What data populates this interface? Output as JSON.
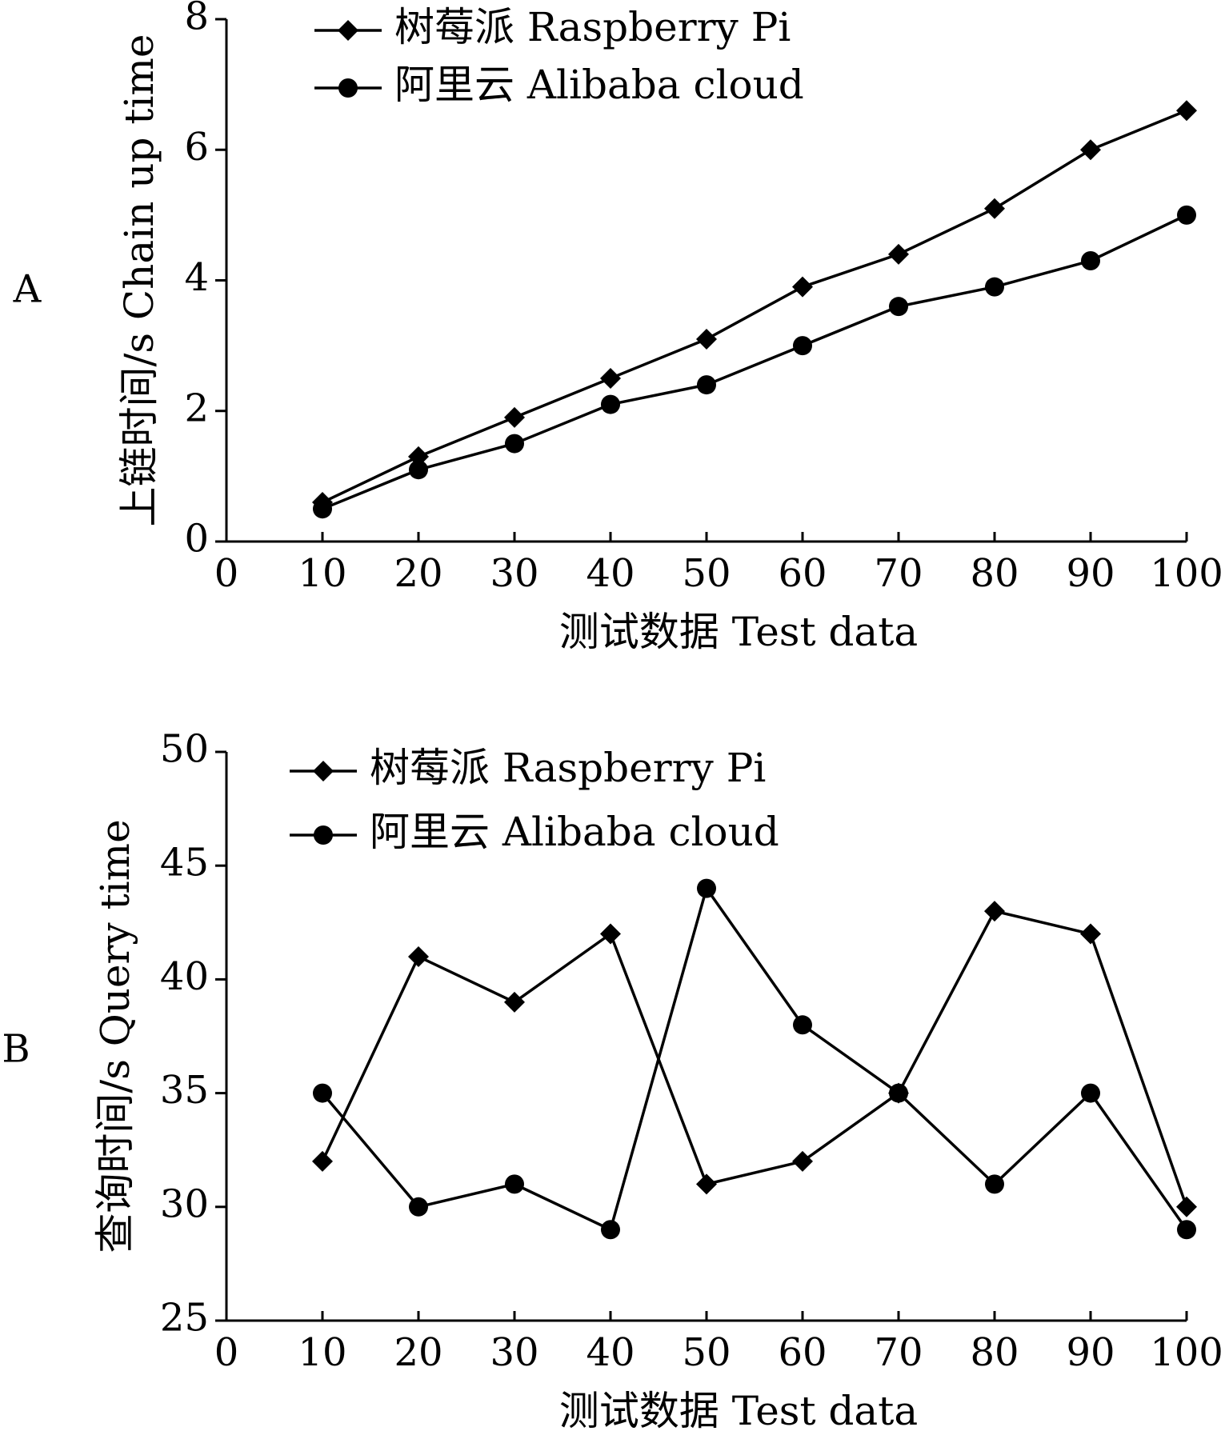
{
  "chart_data": [
    {
      "panel": "A",
      "type": "line",
      "xlabel": "测试数据 Test data",
      "ylabel": "上链时间/s  Chain up time",
      "xlim": [
        0,
        100
      ],
      "ylim": [
        0,
        8
      ],
      "xticks": [
        0,
        10,
        20,
        30,
        40,
        50,
        60,
        70,
        80,
        90,
        100
      ],
      "yticks": [
        0,
        2,
        4,
        6,
        8
      ],
      "grid": false,
      "legend_position": "top-left",
      "x": [
        10,
        20,
        30,
        40,
        50,
        60,
        70,
        80,
        90,
        100
      ],
      "series": [
        {
          "name": "树莓派  Raspberry Pi",
          "marker": "diamond",
          "values": [
            0.6,
            1.3,
            1.9,
            2.5,
            3.1,
            3.9,
            4.4,
            5.1,
            6.0,
            6.6
          ]
        },
        {
          "name": "阿里云  Alibaba cloud",
          "marker": "circle",
          "values": [
            0.5,
            1.1,
            1.5,
            2.1,
            2.4,
            3.0,
            3.6,
            3.9,
            4.3,
            5.0
          ]
        }
      ]
    },
    {
      "panel": "B",
      "type": "line",
      "xlabel": "测试数据 Test data",
      "ylabel": "查询时间/s  Query time",
      "xlim": [
        0,
        100
      ],
      "ylim": [
        25,
        50
      ],
      "xticks": [
        0,
        10,
        20,
        30,
        40,
        50,
        60,
        70,
        80,
        90,
        100
      ],
      "yticks": [
        25,
        30,
        35,
        40,
        45,
        50
      ],
      "grid": false,
      "legend_position": "top-left",
      "x": [
        10,
        20,
        30,
        40,
        50,
        60,
        70,
        80,
        90,
        100
      ],
      "series": [
        {
          "name": "树莓派  Raspberry Pi",
          "marker": "diamond",
          "values": [
            32,
            41,
            39,
            42,
            31,
            32,
            35,
            43,
            42,
            30
          ]
        },
        {
          "name": "阿里云  Alibaba cloud",
          "marker": "circle",
          "values": [
            35,
            30,
            31,
            29,
            44,
            38,
            35,
            31,
            35,
            29
          ]
        }
      ]
    }
  ]
}
